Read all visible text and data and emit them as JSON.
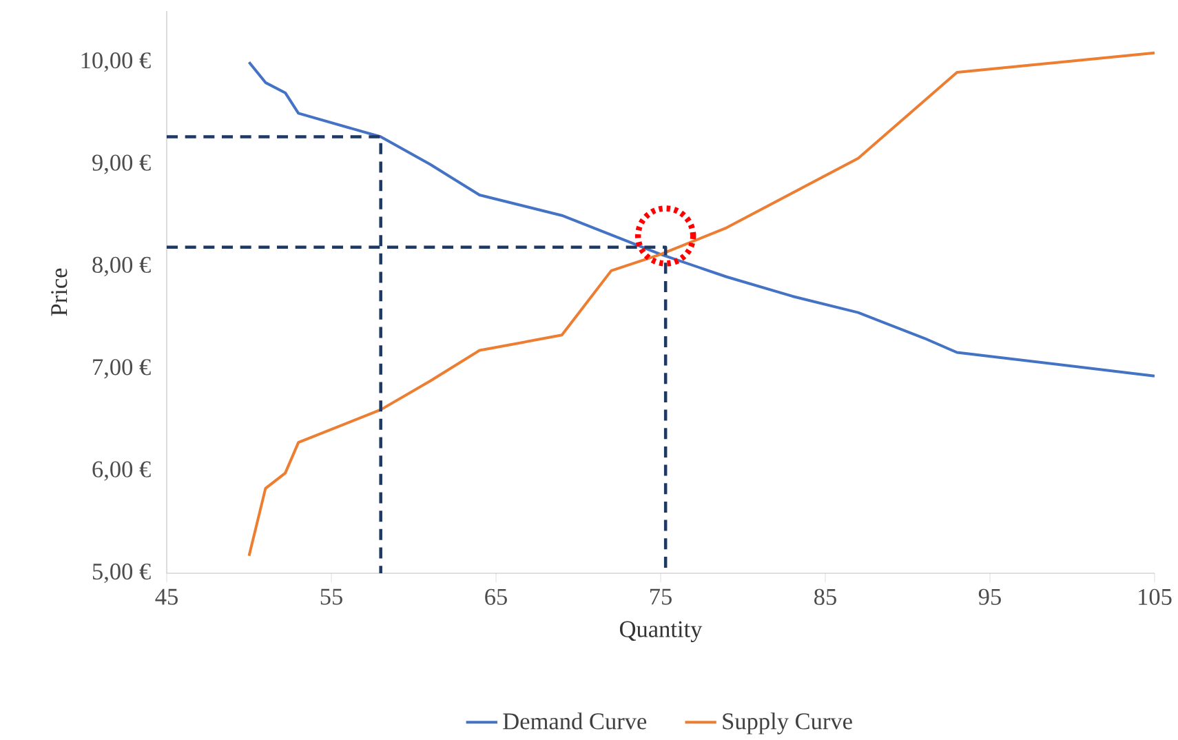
{
  "chart_data": {
    "type": "line",
    "xlabel": "Quantity",
    "ylabel": "Price",
    "xlim": [
      45,
      105
    ],
    "xticks": [
      45,
      55,
      65,
      75,
      85,
      95,
      105
    ],
    "ylim": [
      5,
      10.5
    ],
    "yticks": [
      {
        "value": 5,
        "label": "5,00 €"
      },
      {
        "value": 6,
        "label": "6,00 €"
      },
      {
        "value": 7,
        "label": "7,00 €"
      },
      {
        "value": 8,
        "label": "8,00 €"
      },
      {
        "value": 9,
        "label": "9,00 €"
      },
      {
        "value": 10,
        "label": "10,00 €"
      }
    ],
    "grid": false,
    "legend": "bottom",
    "marker": "none",
    "line_style": "solid",
    "series": [
      {
        "name": "Demand Curve",
        "color": "#4472c4",
        "x": [
          50,
          51,
          52.2,
          53,
          58,
          61,
          64,
          69,
          75,
          79,
          83,
          87,
          91,
          93,
          105
        ],
        "values": [
          10.0,
          9.8,
          9.7,
          9.5,
          9.27,
          9.0,
          8.7,
          8.5,
          8.12,
          7.9,
          7.71,
          7.55,
          7.3,
          7.16,
          6.93
        ]
      },
      {
        "name": "Supply Curve",
        "color": "#ed7d31",
        "x": [
          50,
          51,
          52.2,
          53,
          58,
          61,
          64,
          69,
          72,
          75,
          79,
          87,
          93,
          105
        ],
        "values": [
          5.17,
          5.83,
          5.98,
          6.28,
          6.6,
          6.88,
          7.18,
          7.33,
          7.96,
          8.12,
          8.38,
          9.06,
          9.9,
          10.09
        ]
      },
      {
        "type": "line",
        "color": "#1f3864",
        "line_style": "dashed",
        "x": [
          45,
          58,
          58
        ],
        "values": [
          9.27,
          9.27,
          5
        ]
      },
      {
        "type": "line",
        "color": "#1f3864",
        "line_style": "dashed",
        "x": [
          45,
          75.3,
          75.3
        ],
        "values": [
          8.19,
          8.19,
          5
        ]
      },
      {
        "type": "scatter",
        "color": "#ff0000",
        "marker": "circle",
        "line_style": "dotted",
        "x": [
          75.3
        ],
        "values": [
          8.3
        ]
      }
    ]
  }
}
